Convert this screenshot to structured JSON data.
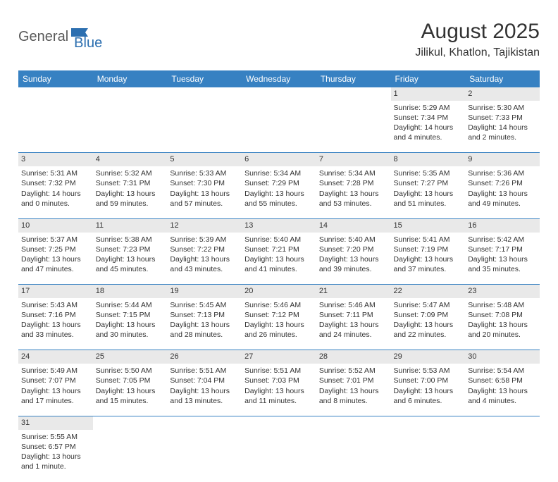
{
  "logo": {
    "general": "General",
    "blue": "Blue"
  },
  "title": "August 2025",
  "location": "Jilikul, Khatlon, Tajikistan",
  "colors": {
    "header_bg": "#3781c2",
    "header_text": "#ffffff",
    "daynum_bg": "#e9e9e9",
    "row_border": "#3781c2",
    "text": "#333333",
    "logo_gray": "#5a5a5a",
    "logo_blue": "#2c6fb0"
  },
  "weekdays": [
    "Sunday",
    "Monday",
    "Tuesday",
    "Wednesday",
    "Thursday",
    "Friday",
    "Saturday"
  ],
  "weeks": [
    [
      null,
      null,
      null,
      null,
      null,
      {
        "n": "1",
        "sr": "Sunrise: 5:29 AM",
        "ss": "Sunset: 7:34 PM",
        "d1": "Daylight: 14 hours",
        "d2": "and 4 minutes."
      },
      {
        "n": "2",
        "sr": "Sunrise: 5:30 AM",
        "ss": "Sunset: 7:33 PM",
        "d1": "Daylight: 14 hours",
        "d2": "and 2 minutes."
      }
    ],
    [
      {
        "n": "3",
        "sr": "Sunrise: 5:31 AM",
        "ss": "Sunset: 7:32 PM",
        "d1": "Daylight: 14 hours",
        "d2": "and 0 minutes."
      },
      {
        "n": "4",
        "sr": "Sunrise: 5:32 AM",
        "ss": "Sunset: 7:31 PM",
        "d1": "Daylight: 13 hours",
        "d2": "and 59 minutes."
      },
      {
        "n": "5",
        "sr": "Sunrise: 5:33 AM",
        "ss": "Sunset: 7:30 PM",
        "d1": "Daylight: 13 hours",
        "d2": "and 57 minutes."
      },
      {
        "n": "6",
        "sr": "Sunrise: 5:34 AM",
        "ss": "Sunset: 7:29 PM",
        "d1": "Daylight: 13 hours",
        "d2": "and 55 minutes."
      },
      {
        "n": "7",
        "sr": "Sunrise: 5:34 AM",
        "ss": "Sunset: 7:28 PM",
        "d1": "Daylight: 13 hours",
        "d2": "and 53 minutes."
      },
      {
        "n": "8",
        "sr": "Sunrise: 5:35 AM",
        "ss": "Sunset: 7:27 PM",
        "d1": "Daylight: 13 hours",
        "d2": "and 51 minutes."
      },
      {
        "n": "9",
        "sr": "Sunrise: 5:36 AM",
        "ss": "Sunset: 7:26 PM",
        "d1": "Daylight: 13 hours",
        "d2": "and 49 minutes."
      }
    ],
    [
      {
        "n": "10",
        "sr": "Sunrise: 5:37 AM",
        "ss": "Sunset: 7:25 PM",
        "d1": "Daylight: 13 hours",
        "d2": "and 47 minutes."
      },
      {
        "n": "11",
        "sr": "Sunrise: 5:38 AM",
        "ss": "Sunset: 7:23 PM",
        "d1": "Daylight: 13 hours",
        "d2": "and 45 minutes."
      },
      {
        "n": "12",
        "sr": "Sunrise: 5:39 AM",
        "ss": "Sunset: 7:22 PM",
        "d1": "Daylight: 13 hours",
        "d2": "and 43 minutes."
      },
      {
        "n": "13",
        "sr": "Sunrise: 5:40 AM",
        "ss": "Sunset: 7:21 PM",
        "d1": "Daylight: 13 hours",
        "d2": "and 41 minutes."
      },
      {
        "n": "14",
        "sr": "Sunrise: 5:40 AM",
        "ss": "Sunset: 7:20 PM",
        "d1": "Daylight: 13 hours",
        "d2": "and 39 minutes."
      },
      {
        "n": "15",
        "sr": "Sunrise: 5:41 AM",
        "ss": "Sunset: 7:19 PM",
        "d1": "Daylight: 13 hours",
        "d2": "and 37 minutes."
      },
      {
        "n": "16",
        "sr": "Sunrise: 5:42 AM",
        "ss": "Sunset: 7:17 PM",
        "d1": "Daylight: 13 hours",
        "d2": "and 35 minutes."
      }
    ],
    [
      {
        "n": "17",
        "sr": "Sunrise: 5:43 AM",
        "ss": "Sunset: 7:16 PM",
        "d1": "Daylight: 13 hours",
        "d2": "and 33 minutes."
      },
      {
        "n": "18",
        "sr": "Sunrise: 5:44 AM",
        "ss": "Sunset: 7:15 PM",
        "d1": "Daylight: 13 hours",
        "d2": "and 30 minutes."
      },
      {
        "n": "19",
        "sr": "Sunrise: 5:45 AM",
        "ss": "Sunset: 7:13 PM",
        "d1": "Daylight: 13 hours",
        "d2": "and 28 minutes."
      },
      {
        "n": "20",
        "sr": "Sunrise: 5:46 AM",
        "ss": "Sunset: 7:12 PM",
        "d1": "Daylight: 13 hours",
        "d2": "and 26 minutes."
      },
      {
        "n": "21",
        "sr": "Sunrise: 5:46 AM",
        "ss": "Sunset: 7:11 PM",
        "d1": "Daylight: 13 hours",
        "d2": "and 24 minutes."
      },
      {
        "n": "22",
        "sr": "Sunrise: 5:47 AM",
        "ss": "Sunset: 7:09 PM",
        "d1": "Daylight: 13 hours",
        "d2": "and 22 minutes."
      },
      {
        "n": "23",
        "sr": "Sunrise: 5:48 AM",
        "ss": "Sunset: 7:08 PM",
        "d1": "Daylight: 13 hours",
        "d2": "and 20 minutes."
      }
    ],
    [
      {
        "n": "24",
        "sr": "Sunrise: 5:49 AM",
        "ss": "Sunset: 7:07 PM",
        "d1": "Daylight: 13 hours",
        "d2": "and 17 minutes."
      },
      {
        "n": "25",
        "sr": "Sunrise: 5:50 AM",
        "ss": "Sunset: 7:05 PM",
        "d1": "Daylight: 13 hours",
        "d2": "and 15 minutes."
      },
      {
        "n": "26",
        "sr": "Sunrise: 5:51 AM",
        "ss": "Sunset: 7:04 PM",
        "d1": "Daylight: 13 hours",
        "d2": "and 13 minutes."
      },
      {
        "n": "27",
        "sr": "Sunrise: 5:51 AM",
        "ss": "Sunset: 7:03 PM",
        "d1": "Daylight: 13 hours",
        "d2": "and 11 minutes."
      },
      {
        "n": "28",
        "sr": "Sunrise: 5:52 AM",
        "ss": "Sunset: 7:01 PM",
        "d1": "Daylight: 13 hours",
        "d2": "and 8 minutes."
      },
      {
        "n": "29",
        "sr": "Sunrise: 5:53 AM",
        "ss": "Sunset: 7:00 PM",
        "d1": "Daylight: 13 hours",
        "d2": "and 6 minutes."
      },
      {
        "n": "30",
        "sr": "Sunrise: 5:54 AM",
        "ss": "Sunset: 6:58 PM",
        "d1": "Daylight: 13 hours",
        "d2": "and 4 minutes."
      }
    ],
    [
      {
        "n": "31",
        "sr": "Sunrise: 5:55 AM",
        "ss": "Sunset: 6:57 PM",
        "d1": "Daylight: 13 hours",
        "d2": "and 1 minute."
      },
      null,
      null,
      null,
      null,
      null,
      null
    ]
  ]
}
